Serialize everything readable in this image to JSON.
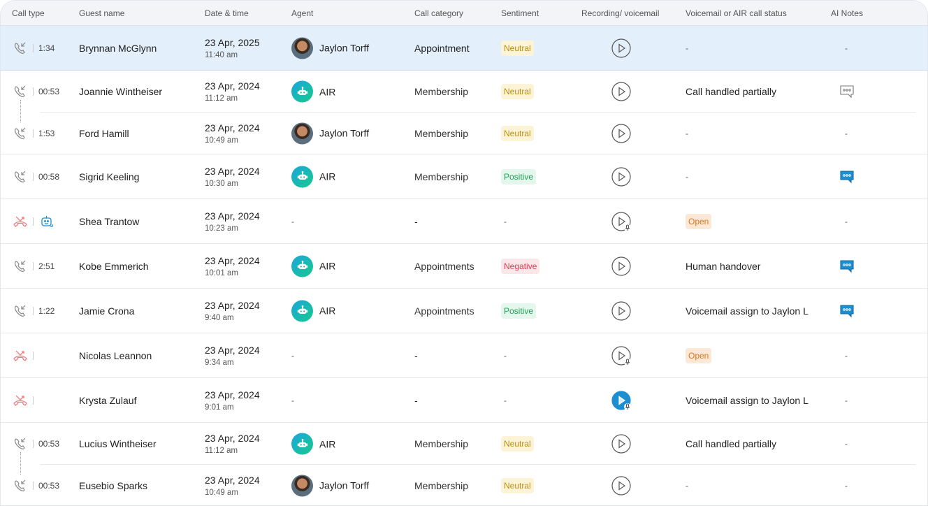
{
  "columns": [
    "Call type",
    "Guest name",
    "Date & time",
    "Agent",
    "Call category",
    "Sentiment",
    "Recording/ voicemail",
    "Voicemail or AIR call status",
    "AI Notes"
  ],
  "colors": {
    "selected_row": "#e3effa",
    "missed": "#f07b86",
    "air_gradient": [
      "#1aa6e0",
      "#18c98a"
    ],
    "note_active": "#1d8fd0"
  },
  "rows": [
    {
      "call_icon": "incoming-call-icon",
      "duration": "1:34",
      "guest": "Brynnan McGlynn",
      "date": "23 Apr, 2025",
      "time": "11:40 am",
      "agent": "Jaylon Torff",
      "agent_type": "person",
      "category": "Appointment",
      "sentiment": "Neutral",
      "recording": "play",
      "status": "-",
      "status_badge": false,
      "notes": "-",
      "selected": true
    },
    {
      "call_icon": "incoming-call-icon",
      "duration": "00:53",
      "guest": "Joannie Wintheiser",
      "date": "23 Apr, 2024",
      "time": "11:12 am",
      "agent": "AIR",
      "agent_type": "bot",
      "category": "Membership",
      "sentiment": "Neutral",
      "recording": "play",
      "status": "Call handled partially",
      "status_badge": false,
      "notes": "outline",
      "group": "start"
    },
    {
      "call_icon": "incoming-call-icon",
      "duration": "1:53",
      "guest": "Ford Hamill",
      "date": "23 Apr, 2024",
      "time": "10:49 am",
      "agent": "Jaylon Torff",
      "agent_type": "person",
      "category": "Membership",
      "sentiment": "Neutral",
      "recording": "play",
      "status": "-",
      "status_badge": false,
      "notes": "-",
      "group": "end"
    },
    {
      "call_icon": "incoming-call-icon",
      "duration": "00:58",
      "guest": "Sigrid Keeling",
      "date": "23 Apr, 2024",
      "time": "10:30 am",
      "agent": "AIR",
      "agent_type": "bot",
      "category": "Membership",
      "sentiment": "Positive",
      "recording": "play",
      "status": "-",
      "status_badge": false,
      "notes": "active"
    },
    {
      "call_icon": "missed-call-icon",
      "extra_icon": "bot-transfer-icon",
      "duration": "",
      "guest": "Shea Trantow",
      "date": "23 Apr, 2024",
      "time": "10:23 am",
      "agent": "-",
      "agent_type": "none",
      "category": "-",
      "sentiment": "-",
      "recording": "voicemail",
      "status": "Open",
      "status_badge": true,
      "notes": "-"
    },
    {
      "call_icon": "incoming-call-icon",
      "duration": "2:51",
      "guest": "Kobe Emmerich",
      "date": "23 Apr, 2024",
      "time": "10:01 am",
      "agent": "AIR",
      "agent_type": "bot",
      "category": "Appointments",
      "sentiment": "Negative",
      "recording": "play",
      "status": "Human handover",
      "status_badge": false,
      "notes": "active"
    },
    {
      "call_icon": "incoming-call-icon",
      "duration": "1:22",
      "guest": "Jamie Crona",
      "date": "23 Apr, 2024",
      "time": "9:40 am",
      "agent": "AIR",
      "agent_type": "bot",
      "category": "Appointments",
      "sentiment": "Positive",
      "recording": "play",
      "status": "Voicemail assign to Jaylon L",
      "status_badge": false,
      "notes": "active"
    },
    {
      "call_icon": "missed-call-icon",
      "duration": "",
      "guest": "Nicolas Leannon",
      "date": "23 Apr, 2024",
      "time": "9:34 am",
      "agent": "-",
      "agent_type": "none",
      "category": "-",
      "sentiment": "-",
      "recording": "voicemail",
      "status": "Open",
      "status_badge": true,
      "notes": "-"
    },
    {
      "call_icon": "missed-call-icon",
      "duration": "",
      "guest": "Krysta Zulauf",
      "date": "23 Apr, 2024",
      "time": "9:01 am",
      "agent": "-",
      "agent_type": "none",
      "category": "-",
      "sentiment": "-",
      "recording": "voicemail-active",
      "status": "Voicemail assign to Jaylon L",
      "status_badge": false,
      "notes": "-"
    },
    {
      "call_icon": "incoming-call-icon",
      "duration": "00:53",
      "guest": "Lucius Wintheiser",
      "date": "23 Apr, 2024",
      "time": "11:12 am",
      "agent": "AIR",
      "agent_type": "bot",
      "category": "Membership",
      "sentiment": "Neutral",
      "recording": "play",
      "status": "Call handled partially",
      "status_badge": false,
      "notes": "-",
      "group": "start"
    },
    {
      "call_icon": "incoming-call-icon",
      "duration": "00:53",
      "guest": "Eusebio Sparks",
      "date": "23 Apr, 2024",
      "time": "10:49 am",
      "agent": "Jaylon Torff",
      "agent_type": "person",
      "category": "Membership",
      "sentiment": "Neutral",
      "recording": "play",
      "status": "-",
      "status_badge": false,
      "notes": "-",
      "group": "end"
    }
  ]
}
